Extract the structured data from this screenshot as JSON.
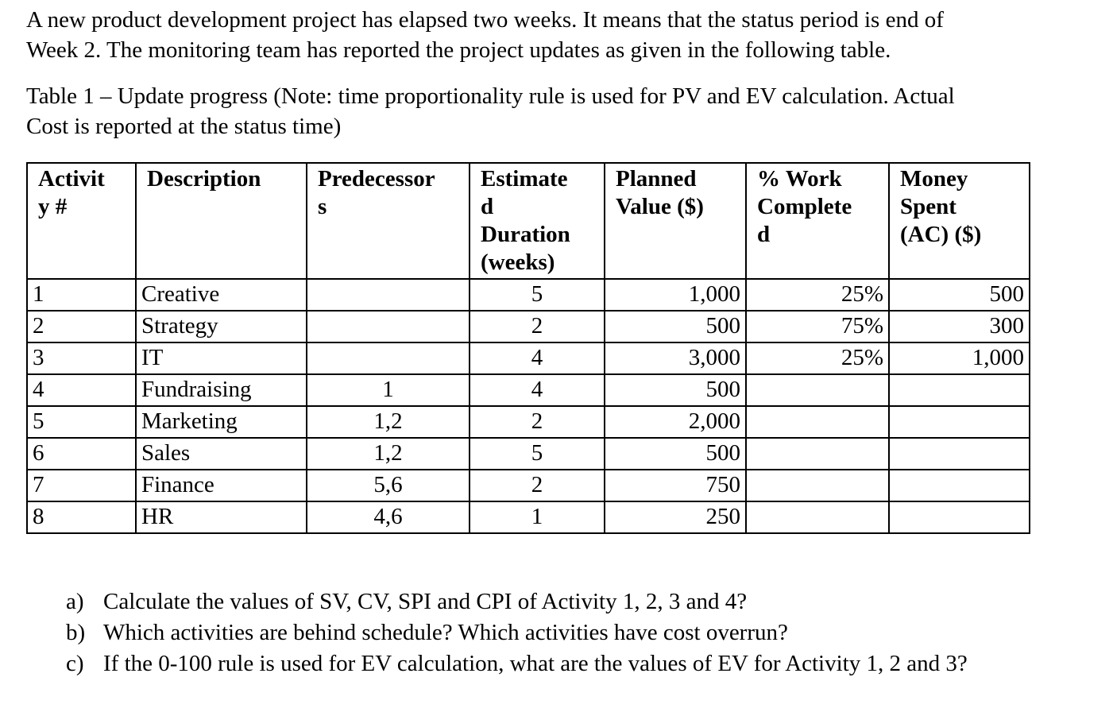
{
  "page": {
    "intro": "A new product development project has elapsed two weeks. It means that the status period is end of\nWeek 2. The monitoring team has reported the project updates as given in the following table.",
    "table_caption": "Table 1 – Update progress (Note: time proportionality rule is used for PV and EV calculation. Actual\nCost is reported at the status time)"
  },
  "table": {
    "headers": [
      "Activit\ny #",
      "Description",
      "Predecessor\ns",
      "Estimate\nd\nDuration\n(weeks)",
      "Planned\nValue ($)",
      "% Work\nComplete\nd",
      "Money\nSpent\n(AC) ($)"
    ],
    "header_full_names": [
      "Activity #",
      "Description",
      "Predecessors",
      "Estimated Duration (weeks)",
      "Planned Value ($)",
      "% Work Completed",
      "Money Spent (AC) ($)"
    ],
    "rows": [
      [
        "1",
        "Creative",
        "",
        "5",
        "1,000",
        "25%",
        "500"
      ],
      [
        "2",
        "Strategy",
        "",
        "2",
        "500",
        "75%",
        "300"
      ],
      [
        "3",
        "IT",
        "",
        "4",
        "3,000",
        "25%",
        "1,000"
      ],
      [
        "4",
        "Fundraising",
        "1",
        "4",
        "500",
        "",
        ""
      ],
      [
        "5",
        "Marketing",
        "1,2",
        "2",
        "2,000",
        "",
        ""
      ],
      [
        "6",
        "Sales",
        "1,2",
        "5",
        "500",
        "",
        ""
      ],
      [
        "7",
        "Finance",
        "5,6",
        "2",
        "750",
        "",
        ""
      ],
      [
        "8",
        "HR",
        "4,6",
        "1",
        "250",
        "",
        ""
      ]
    ]
  },
  "questions": [
    {
      "marker": "a)",
      "text": "Calculate the values of SV, CV, SPI and CPI of Activity 1, 2, 3 and 4?"
    },
    {
      "marker": "b)",
      "text": "Which activities are behind schedule? Which activities have cost overrun?"
    },
    {
      "marker": "c)",
      "text": "If the 0-100 rule is used for EV calculation, what are the values of EV for Activity 1, 2 and 3?"
    }
  ],
  "colors": {
    "text": "#000000",
    "background": "#ffffff",
    "table_border": "#000000"
  }
}
